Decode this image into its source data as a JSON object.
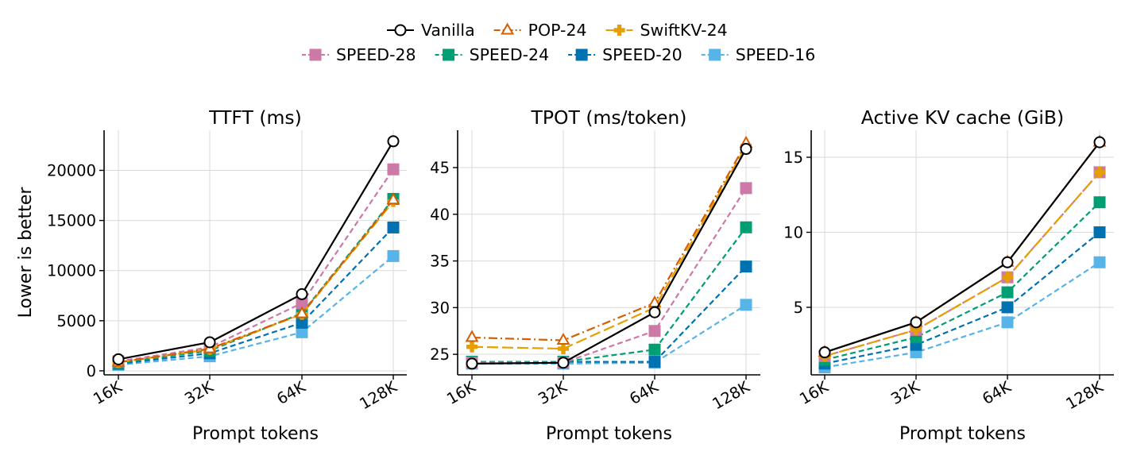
{
  "legend": {
    "placement": "top-center",
    "rows": [
      [
        "Vanilla",
        "POP-24",
        "SwiftKV-24"
      ],
      [
        "SPEED-28",
        "SPEED-24",
        "SPEED-20",
        "SPEED-16"
      ]
    ]
  },
  "styles": {
    "Vanilla": {
      "color": "#000000",
      "marker": "circle-open",
      "dash": "solid"
    },
    "POP-24": {
      "color": "#D55E00",
      "marker": "triangle-open",
      "dash": "dashdot"
    },
    "SwiftKV-24": {
      "color": "#E69F00",
      "marker": "plus-filled",
      "dash": "longdash"
    },
    "SPEED-28": {
      "color": "#CC79A7",
      "marker": "square",
      "dash": "dashed"
    },
    "SPEED-24": {
      "color": "#009E73",
      "marker": "square",
      "dash": "dashed"
    },
    "SPEED-20": {
      "color": "#0072B2",
      "marker": "square",
      "dash": "dashed"
    },
    "SPEED-16": {
      "color": "#56B4E9",
      "marker": "square",
      "dash": "dashed"
    }
  },
  "chart_data": [
    {
      "type": "line",
      "title": "TTFT (ms)",
      "xlabel": "Prompt tokens",
      "ylabel": "Lower is better",
      "categories": [
        "16K",
        "32K",
        "64K",
        "128K"
      ],
      "ylim": [
        -400,
        24000
      ],
      "yticks": [
        0,
        5000,
        10000,
        15000,
        20000
      ],
      "grid": true,
      "series": [
        {
          "name": "SPEED-16",
          "values": [
            600,
            1450,
            3850,
            11450
          ]
        },
        {
          "name": "SPEED-20",
          "values": [
            700,
            1750,
            4800,
            14300
          ]
        },
        {
          "name": "SPEED-24",
          "values": [
            800,
            2000,
            5750,
            17150
          ]
        },
        {
          "name": "SPEED-28",
          "values": [
            950,
            2350,
            6750,
            20100
          ]
        },
        {
          "name": "SwiftKV-24",
          "values": [
            850,
            2150,
            5650,
            16900
          ]
        },
        {
          "name": "POP-24",
          "values": [
            850,
            2200,
            5700,
            17050
          ]
        },
        {
          "name": "Vanilla",
          "values": [
            1150,
            2850,
            7650,
            22900
          ]
        }
      ]
    },
    {
      "type": "line",
      "title": "TPOT (ms/token)",
      "xlabel": "Prompt tokens",
      "ylabel": "",
      "categories": [
        "16K",
        "32K",
        "64K",
        "128K"
      ],
      "ylim": [
        22.8,
        49
      ],
      "yticks": [
        25,
        30,
        35,
        40,
        45
      ],
      "grid": true,
      "series": [
        {
          "name": "SPEED-16",
          "values": [
            24.0,
            24.0,
            24.1,
            30.3
          ]
        },
        {
          "name": "SPEED-20",
          "values": [
            24.2,
            24.2,
            24.2,
            34.4
          ]
        },
        {
          "name": "SPEED-24",
          "values": [
            24.2,
            24.2,
            25.5,
            38.6
          ]
        },
        {
          "name": "SPEED-28",
          "values": [
            24.1,
            24.1,
            27.5,
            42.8
          ]
        },
        {
          "name": "SwiftKV-24",
          "values": [
            25.8,
            25.6,
            30.0,
            47.3
          ]
        },
        {
          "name": "POP-24",
          "values": [
            26.8,
            26.5,
            30.5,
            47.6
          ]
        },
        {
          "name": "Vanilla",
          "values": [
            24.0,
            24.1,
            29.5,
            47.0
          ]
        }
      ]
    },
    {
      "type": "line",
      "title": "Active KV cache (GiB)",
      "xlabel": "Prompt tokens",
      "ylabel": "",
      "categories": [
        "16K",
        "32K",
        "64K",
        "128K"
      ],
      "ylim": [
        0.5,
        16.8
      ],
      "yticks": [
        5,
        10,
        15
      ],
      "grid": true,
      "series": [
        {
          "name": "SPEED-16",
          "values": [
            1.0,
            2.0,
            4.0,
            8.0
          ]
        },
        {
          "name": "SPEED-20",
          "values": [
            1.25,
            2.5,
            5.0,
            10.0
          ]
        },
        {
          "name": "SPEED-24",
          "values": [
            1.5,
            3.0,
            6.0,
            12.0
          ]
        },
        {
          "name": "SPEED-28",
          "values": [
            1.75,
            3.5,
            7.0,
            14.0
          ]
        },
        {
          "name": "SwiftKV-24",
          "values": [
            1.75,
            3.5,
            7.0,
            14.0
          ]
        },
        {
          "name": "POP-24",
          "values": [
            2.0,
            4.0,
            8.0,
            16.0
          ]
        },
        {
          "name": "Vanilla",
          "values": [
            2.0,
            4.0,
            8.0,
            16.0
          ]
        }
      ]
    }
  ]
}
